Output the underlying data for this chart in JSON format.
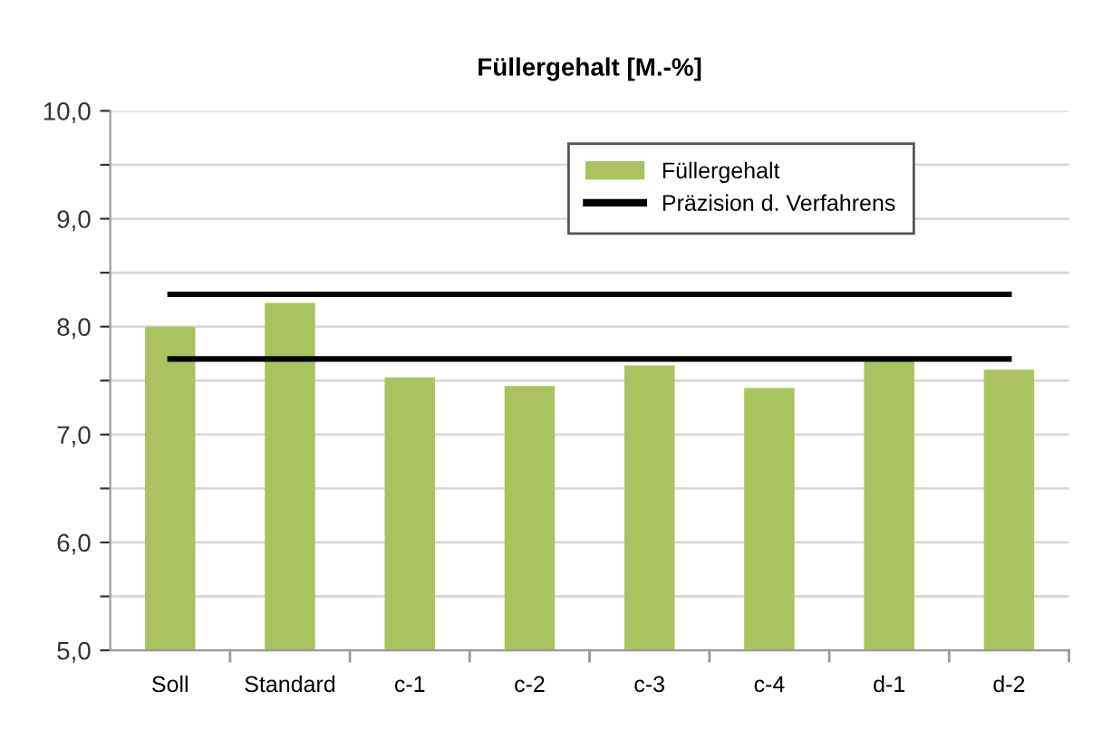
{
  "chart_data": {
    "type": "bar",
    "title": "Füllergehalt [M.-%]",
    "categories": [
      "Soll",
      "Standard",
      "c-1",
      "c-2",
      "c-3",
      "c-4",
      "d-1",
      "d-2"
    ],
    "series": [
      {
        "name": "Füllergehalt",
        "color": "#a9c45e",
        "values": [
          8.0,
          8.22,
          7.53,
          7.45,
          7.64,
          7.43,
          7.69,
          7.6
        ]
      },
      {
        "name": "Präzision d. Verfahrens",
        "type": "line",
        "color": "#000000",
        "values": [
          8.3,
          8.3,
          8.3,
          8.3,
          8.3,
          8.3,
          8.3,
          8.3
        ]
      },
      {
        "type": "line",
        "color": "#000000",
        "values": [
          7.7,
          7.7,
          7.7,
          7.7,
          7.7,
          7.7,
          7.7,
          7.7
        ]
      }
    ],
    "ylim": [
      5.0,
      10.0
    ],
    "yticks": [
      {
        "value": 5,
        "label": "5,0"
      },
      {
        "value": 5.5,
        "label": null
      },
      {
        "value": 6,
        "label": "6,0"
      },
      {
        "value": 6.5,
        "label": null
      },
      {
        "value": 7,
        "label": "7,0"
      },
      {
        "value": 7.5,
        "label": null
      },
      {
        "value": 8,
        "label": "8,0"
      },
      {
        "value": 8.5,
        "label": null
      },
      {
        "value": 9,
        "label": "9,0"
      },
      {
        "value": 9.5,
        "label": null
      },
      {
        "value": 10,
        "label": "10,0"
      }
    ],
    "grid": "y",
    "legend": "top right",
    "marker": "none",
    "line_style": "solid"
  }
}
